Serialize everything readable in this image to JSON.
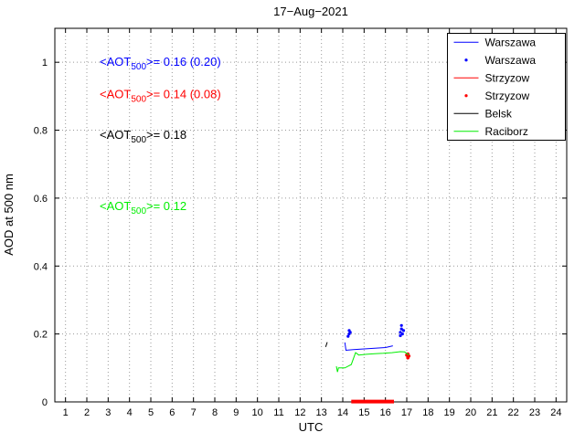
{
  "chart_data": {
    "type": "line",
    "title": "17−Aug−2021",
    "xlabel": "UTC",
    "ylabel": "AOD at 500 nm",
    "xlim": [
      0.5,
      24.5
    ],
    "ylim": [
      0,
      1.1
    ],
    "xticks": [
      1,
      2,
      3,
      4,
      5,
      6,
      7,
      8,
      9,
      10,
      11,
      12,
      13,
      14,
      15,
      16,
      17,
      18,
      19,
      20,
      21,
      22,
      23,
      24
    ],
    "yticks": [
      0,
      0.2,
      0.4,
      0.6,
      0.8,
      1
    ],
    "yticklabels": [
      "0",
      "0.2",
      "0.4",
      "0.6",
      "0.8",
      "1"
    ],
    "grid": true,
    "legend_position": "top-right",
    "series": [
      {
        "name": "Warszawa",
        "color": "#0000ff",
        "type": "line",
        "width": 1,
        "points": [
          [
            14.1,
            0.175
          ],
          [
            14.15,
            0.152
          ],
          [
            14.5,
            0.154
          ],
          [
            15.0,
            0.156
          ],
          [
            15.5,
            0.158
          ],
          [
            16.0,
            0.16
          ],
          [
            16.35,
            0.165
          ]
        ]
      },
      {
        "name": "Warszawa",
        "color": "#0000ff",
        "type": "scatter",
        "markersize": 1.6,
        "points": [
          [
            14.25,
            0.193
          ],
          [
            14.3,
            0.2
          ],
          [
            14.3,
            0.21
          ],
          [
            14.35,
            0.205
          ],
          [
            16.7,
            0.195
          ],
          [
            16.7,
            0.205
          ],
          [
            16.75,
            0.215
          ],
          [
            16.75,
            0.225
          ],
          [
            16.8,
            0.2
          ],
          [
            16.85,
            0.21
          ]
        ]
      },
      {
        "name": "Strzyzow",
        "color": "#ff0000",
        "type": "line",
        "width": 4,
        "points": [
          [
            14.4,
            0.001
          ],
          [
            16.4,
            0.001
          ]
        ]
      },
      {
        "name": "Strzyzow",
        "color": "#ff0000",
        "type": "scatter",
        "markersize": 1.8,
        "points": [
          [
            17.0,
            0.138
          ],
          [
            17.05,
            0.13
          ],
          [
            17.1,
            0.135
          ],
          [
            17.05,
            0.141
          ]
        ]
      },
      {
        "name": "Belsk",
        "color": "#000000",
        "type": "line",
        "width": 1,
        "points": [
          [
            13.2,
            0.162
          ],
          [
            13.27,
            0.176
          ]
        ]
      },
      {
        "name": "Raciborz",
        "color": "#00ee00",
        "type": "line",
        "width": 1,
        "points": [
          [
            13.7,
            0.105
          ],
          [
            13.75,
            0.088
          ],
          [
            13.8,
            0.1
          ],
          [
            14.1,
            0.1
          ],
          [
            14.4,
            0.11
          ],
          [
            14.6,
            0.145
          ],
          [
            14.75,
            0.138
          ],
          [
            15.1,
            0.14
          ],
          [
            15.5,
            0.142
          ],
          [
            15.9,
            0.143
          ],
          [
            16.3,
            0.145
          ],
          [
            16.7,
            0.148
          ],
          [
            16.9,
            0.147
          ],
          [
            17.1,
            0.138
          ]
        ]
      }
    ],
    "annotations": [
      {
        "x": 2.6,
        "y": 1.0,
        "color": "#0000ff",
        "prefix": "<AOT",
        "sub": "500",
        "suffix": ">= 0.16 (0.20)"
      },
      {
        "x": 2.6,
        "y": 0.905,
        "color": "#ff0000",
        "prefix": "<AOT",
        "sub": "500",
        "suffix": ">= 0.14 (0.08)"
      },
      {
        "x": 2.6,
        "y": 0.785,
        "color": "#000000",
        "prefix": "<AOT",
        "sub": "500",
        "suffix": ">= 0.18"
      },
      {
        "x": 2.6,
        "y": 0.575,
        "color": "#00ee00",
        "prefix": "<AOT",
        "sub": "500",
        "suffix": ">= 0.12"
      }
    ],
    "legend": [
      {
        "label": "Warszawa",
        "color": "#0000ff",
        "style": "line"
      },
      {
        "label": "Warszawa",
        "color": "#0000ff",
        "style": "dot"
      },
      {
        "label": "Strzyzow",
        "color": "#ff0000",
        "style": "line"
      },
      {
        "label": "Strzyzow",
        "color": "#ff0000",
        "style": "dot"
      },
      {
        "label": "Belsk",
        "color": "#000000",
        "style": "line"
      },
      {
        "label": "Raciborz",
        "color": "#00ee00",
        "style": "line"
      }
    ],
    "colors": {
      "axis": "#000000",
      "grid": "#999999",
      "background": "#ffffff"
    }
  }
}
